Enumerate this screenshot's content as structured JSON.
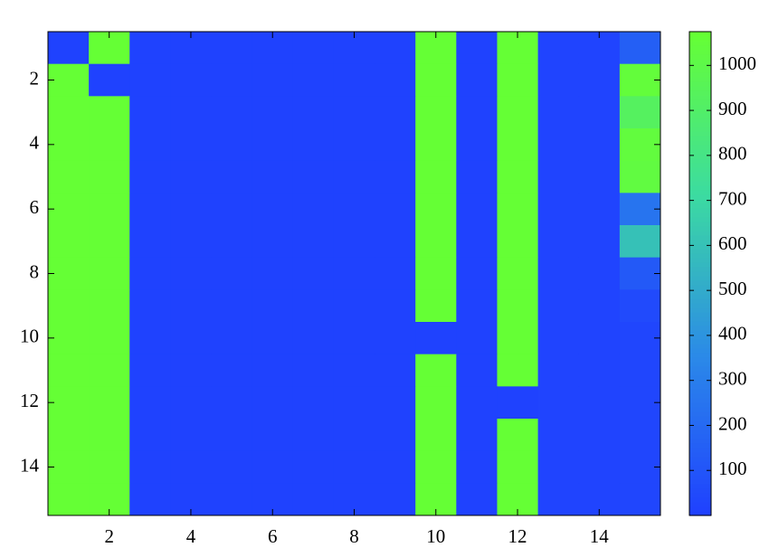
{
  "chart_data": {
    "type": "heatmap",
    "x": [
      1,
      2,
      3,
      4,
      5,
      6,
      7,
      8,
      9,
      10,
      11,
      12,
      13,
      14,
      15
    ],
    "y": [
      1,
      2,
      3,
      4,
      5,
      6,
      7,
      8,
      9,
      10,
      11,
      12,
      13,
      14,
      15
    ],
    "z": [
      [
        10,
        1070,
        10,
        10,
        10,
        10,
        10,
        10,
        10,
        1070,
        10,
        1070,
        20,
        20,
        150
      ],
      [
        1070,
        10,
        10,
        10,
        10,
        10,
        10,
        10,
        10,
        1070,
        10,
        1070,
        20,
        20,
        1050
      ],
      [
        1070,
        1070,
        10,
        10,
        10,
        10,
        10,
        10,
        10,
        1070,
        10,
        1070,
        20,
        20,
        930
      ],
      [
        1070,
        1070,
        10,
        10,
        10,
        10,
        10,
        10,
        10,
        1070,
        10,
        1070,
        20,
        20,
        1040
      ],
      [
        1070,
        1070,
        10,
        10,
        10,
        10,
        10,
        10,
        10,
        1070,
        10,
        1070,
        20,
        20,
        1030
      ],
      [
        1070,
        1070,
        10,
        10,
        10,
        10,
        10,
        10,
        10,
        1070,
        10,
        1070,
        20,
        20,
        250
      ],
      [
        1070,
        1070,
        10,
        10,
        10,
        10,
        10,
        10,
        10,
        1070,
        10,
        1070,
        20,
        20,
        600
      ],
      [
        1070,
        1070,
        10,
        10,
        10,
        10,
        10,
        10,
        10,
        1070,
        10,
        1070,
        20,
        20,
        120
      ],
      [
        1070,
        1070,
        10,
        10,
        10,
        10,
        10,
        10,
        10,
        1070,
        10,
        1070,
        20,
        20,
        50
      ],
      [
        1070,
        1070,
        10,
        10,
        10,
        10,
        10,
        10,
        10,
        10,
        10,
        1070,
        20,
        20,
        30
      ],
      [
        1070,
        1070,
        10,
        10,
        10,
        10,
        10,
        10,
        10,
        1070,
        10,
        1070,
        20,
        20,
        30
      ],
      [
        1070,
        1070,
        10,
        10,
        10,
        10,
        10,
        10,
        10,
        1070,
        10,
        10,
        20,
        20,
        30
      ],
      [
        1070,
        1070,
        10,
        10,
        10,
        10,
        10,
        10,
        10,
        1070,
        10,
        1070,
        20,
        20,
        30
      ],
      [
        1070,
        1070,
        10,
        10,
        10,
        10,
        10,
        10,
        10,
        1070,
        10,
        1070,
        20,
        20,
        30
      ],
      [
        1070,
        1070,
        10,
        10,
        10,
        10,
        10,
        10,
        10,
        1070,
        10,
        1070,
        20,
        20,
        30
      ]
    ],
    "xlim": [
      0.5,
      15.5
    ],
    "ylim": [
      15.5,
      0.5
    ],
    "xticks": [
      2,
      4,
      6,
      8,
      10,
      12,
      14
    ],
    "yticks": [
      2,
      4,
      6,
      8,
      10,
      12,
      14
    ],
    "clim": [
      0,
      1075
    ],
    "cticks": [
      100,
      200,
      300,
      400,
      500,
      600,
      700,
      800,
      900,
      1000
    ],
    "colormap": [
      "#1f40ff",
      "#2b8ae8",
      "#3cdca0",
      "#66ff33"
    ]
  }
}
